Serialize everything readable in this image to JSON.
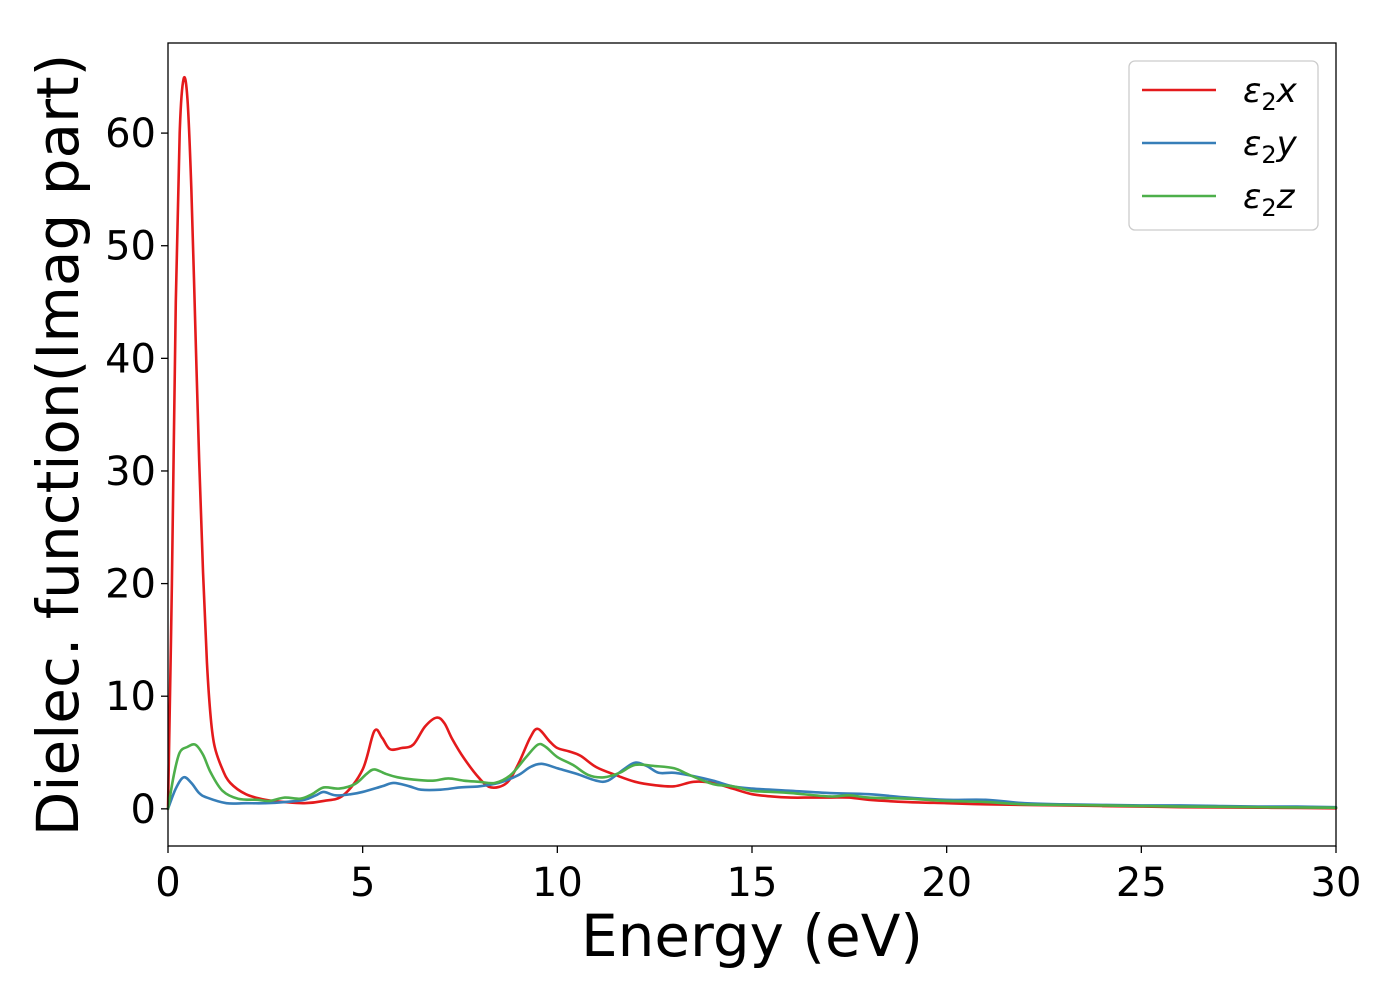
{
  "chart_data": {
    "type": "line",
    "xlabel": "Energy (eV)",
    "ylabel": "Dielec. function(Imag part)",
    "xlim": [
      0,
      30
    ],
    "ylim": [
      -3.3,
      68
    ],
    "xticks": [
      0,
      5,
      10,
      15,
      20,
      25,
      30
    ],
    "yticks": [
      0,
      10,
      20,
      30,
      40,
      50,
      60
    ],
    "grid": false,
    "legend_position": "top-right",
    "series": [
      {
        "name": "ε2x",
        "legend_base": "ε",
        "legend_sub": "2",
        "legend_suffix": "x",
        "color": "#e41a1c",
        "points": [
          [
            0,
            0
          ],
          [
            0.1,
            20
          ],
          [
            0.2,
            45
          ],
          [
            0.3,
            60
          ],
          [
            0.4,
            64.8
          ],
          [
            0.5,
            63
          ],
          [
            0.6,
            55
          ],
          [
            0.7,
            43
          ],
          [
            0.8,
            31
          ],
          [
            0.9,
            21
          ],
          [
            1.0,
            13
          ],
          [
            1.1,
            8
          ],
          [
            1.2,
            5.5
          ],
          [
            1.4,
            3.5
          ],
          [
            1.6,
            2.3
          ],
          [
            2.0,
            1.3
          ],
          [
            2.5,
            0.8
          ],
          [
            3.0,
            0.6
          ],
          [
            3.5,
            0.5
          ],
          [
            4.0,
            0.7
          ],
          [
            4.5,
            1.2
          ],
          [
            5.0,
            3.5
          ],
          [
            5.3,
            6.9
          ],
          [
            5.5,
            6.3
          ],
          [
            5.7,
            5.3
          ],
          [
            6.0,
            5.4
          ],
          [
            6.3,
            5.7
          ],
          [
            6.6,
            7.3
          ],
          [
            6.9,
            8.1
          ],
          [
            7.1,
            7.6
          ],
          [
            7.3,
            6.2
          ],
          [
            7.6,
            4.5
          ],
          [
            8.0,
            2.7
          ],
          [
            8.3,
            1.9
          ],
          [
            8.7,
            2.3
          ],
          [
            9.0,
            4.0
          ],
          [
            9.3,
            6.3
          ],
          [
            9.5,
            7.1
          ],
          [
            9.8,
            6.0
          ],
          [
            10.0,
            5.4
          ],
          [
            10.3,
            5.1
          ],
          [
            10.6,
            4.7
          ],
          [
            11.0,
            3.7
          ],
          [
            11.5,
            3.0
          ],
          [
            12.0,
            2.4
          ],
          [
            12.5,
            2.1
          ],
          [
            13.0,
            2.0
          ],
          [
            13.5,
            2.4
          ],
          [
            14.0,
            2.3
          ],
          [
            14.5,
            1.8
          ],
          [
            15.0,
            1.3
          ],
          [
            15.5,
            1.1
          ],
          [
            16.0,
            1.0
          ],
          [
            16.5,
            1.0
          ],
          [
            17.0,
            1.0
          ],
          [
            17.5,
            1.0
          ],
          [
            18.0,
            0.8
          ],
          [
            19.0,
            0.6
          ],
          [
            20.0,
            0.5
          ],
          [
            21.0,
            0.4
          ],
          [
            22.0,
            0.35
          ],
          [
            23.0,
            0.3
          ],
          [
            24.0,
            0.25
          ],
          [
            25.0,
            0.2
          ],
          [
            26.0,
            0.15
          ],
          [
            27.0,
            0.12
          ],
          [
            28.0,
            0.1
          ],
          [
            29.0,
            0.08
          ],
          [
            30.0,
            0.05
          ]
        ]
      },
      {
        "name": "ε2y",
        "legend_base": "ε",
        "legend_sub": "2",
        "legend_suffix": "y",
        "color": "#377eb8",
        "points": [
          [
            0,
            0
          ],
          [
            0.2,
            1.8
          ],
          [
            0.4,
            2.8
          ],
          [
            0.6,
            2.3
          ],
          [
            0.8,
            1.4
          ],
          [
            1.0,
            1.0
          ],
          [
            1.5,
            0.5
          ],
          [
            2.0,
            0.5
          ],
          [
            2.5,
            0.5
          ],
          [
            3.0,
            0.6
          ],
          [
            3.5,
            0.8
          ],
          [
            3.8,
            1.2
          ],
          [
            4.0,
            1.5
          ],
          [
            4.3,
            1.2
          ],
          [
            4.7,
            1.3
          ],
          [
            5.0,
            1.5
          ],
          [
            5.5,
            2.0
          ],
          [
            5.8,
            2.3
          ],
          [
            6.2,
            2.0
          ],
          [
            6.5,
            1.7
          ],
          [
            7.0,
            1.7
          ],
          [
            7.5,
            1.9
          ],
          [
            8.0,
            2.0
          ],
          [
            8.5,
            2.3
          ],
          [
            9.0,
            3.0
          ],
          [
            9.3,
            3.7
          ],
          [
            9.6,
            4.0
          ],
          [
            10.0,
            3.6
          ],
          [
            10.5,
            3.1
          ],
          [
            11.0,
            2.5
          ],
          [
            11.3,
            2.5
          ],
          [
            11.7,
            3.5
          ],
          [
            12.0,
            4.1
          ],
          [
            12.3,
            3.8
          ],
          [
            12.6,
            3.2
          ],
          [
            13.0,
            3.2
          ],
          [
            13.5,
            2.9
          ],
          [
            14.0,
            2.5
          ],
          [
            14.5,
            2.0
          ],
          [
            15.0,
            1.8
          ],
          [
            16.0,
            1.6
          ],
          [
            17.0,
            1.4
          ],
          [
            18.0,
            1.3
          ],
          [
            19.0,
            1.0
          ],
          [
            20.0,
            0.8
          ],
          [
            21.0,
            0.8
          ],
          [
            22.0,
            0.5
          ],
          [
            23.0,
            0.4
          ],
          [
            24.0,
            0.35
          ],
          [
            25.0,
            0.3
          ],
          [
            26.0,
            0.3
          ],
          [
            27.0,
            0.25
          ],
          [
            28.0,
            0.2
          ],
          [
            29.0,
            0.2
          ],
          [
            30.0,
            0.15
          ]
        ]
      },
      {
        "name": "ε2z",
        "legend_base": "ε",
        "legend_sub": "2",
        "legend_suffix": "z",
        "color": "#4daf4a",
        "points": [
          [
            0,
            0
          ],
          [
            0.15,
            3
          ],
          [
            0.3,
            5.0
          ],
          [
            0.5,
            5.5
          ],
          [
            0.7,
            5.7
          ],
          [
            0.9,
            4.8
          ],
          [
            1.1,
            3.2
          ],
          [
            1.4,
            1.6
          ],
          [
            1.8,
            0.9
          ],
          [
            2.3,
            0.8
          ],
          [
            2.6,
            0.7
          ],
          [
            3.0,
            1.0
          ],
          [
            3.4,
            0.9
          ],
          [
            3.7,
            1.3
          ],
          [
            4.0,
            1.9
          ],
          [
            4.4,
            1.8
          ],
          [
            4.8,
            2.2
          ],
          [
            5.1,
            3.1
          ],
          [
            5.3,
            3.5
          ],
          [
            5.6,
            3.1
          ],
          [
            5.9,
            2.8
          ],
          [
            6.3,
            2.6
          ],
          [
            6.8,
            2.5
          ],
          [
            7.2,
            2.7
          ],
          [
            7.6,
            2.5
          ],
          [
            8.0,
            2.4
          ],
          [
            8.4,
            2.3
          ],
          [
            8.8,
            3.0
          ],
          [
            9.2,
            4.6
          ],
          [
            9.5,
            5.7
          ],
          [
            9.7,
            5.5
          ],
          [
            10.0,
            4.6
          ],
          [
            10.4,
            3.9
          ],
          [
            10.8,
            3.0
          ],
          [
            11.2,
            2.8
          ],
          [
            11.6,
            3.2
          ],
          [
            12.0,
            3.9
          ],
          [
            12.5,
            3.8
          ],
          [
            13.0,
            3.6
          ],
          [
            13.4,
            3.0
          ],
          [
            14.0,
            2.2
          ],
          [
            14.5,
            2.0
          ],
          [
            15.0,
            1.6
          ],
          [
            15.5,
            1.5
          ],
          [
            16.0,
            1.4
          ],
          [
            17.0,
            1.1
          ],
          [
            17.5,
            1.2
          ],
          [
            18.0,
            1.0
          ],
          [
            19.0,
            0.9
          ],
          [
            20.0,
            0.7
          ],
          [
            21.0,
            0.6
          ],
          [
            22.0,
            0.4
          ],
          [
            23.0,
            0.35
          ],
          [
            24.0,
            0.3
          ],
          [
            25.0,
            0.25
          ],
          [
            26.0,
            0.2
          ],
          [
            27.0,
            0.18
          ],
          [
            28.0,
            0.15
          ],
          [
            29.0,
            0.12
          ],
          [
            30.0,
            0.1
          ]
        ]
      }
    ]
  }
}
